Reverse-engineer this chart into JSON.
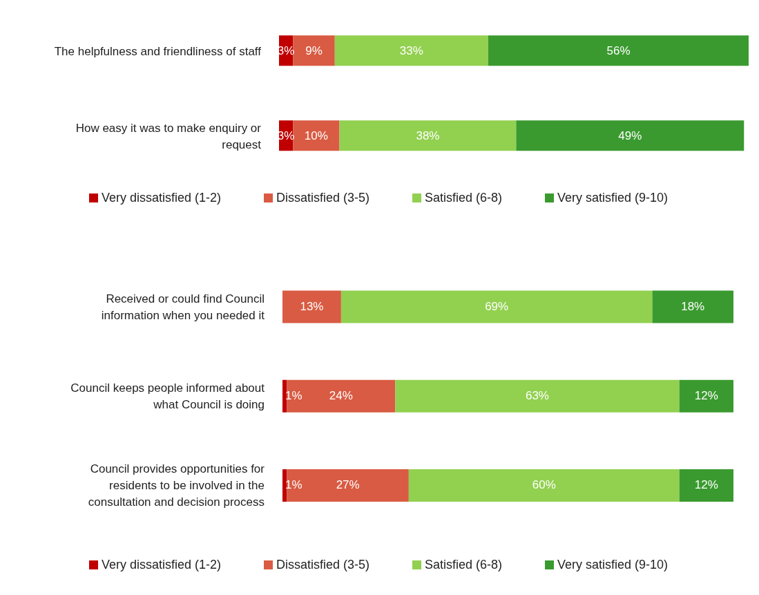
{
  "chart_data": [
    {
      "type": "bar",
      "orientation": "horizontal",
      "stacked": true,
      "legend": "bottom",
      "categories": [
        "The helpfulness and friendliness of staff",
        "How easy it was to make enquiry or request"
      ],
      "series": [
        {
          "name": "Very dissatisfied (1-2)",
          "color": "#c00000",
          "values": [
            3,
            3
          ],
          "value_labels": [
            "3%",
            "3%"
          ]
        },
        {
          "name": "Dissatisfied (3-5)",
          "color": "#d95b43",
          "values": [
            9,
            10
          ],
          "value_labels": [
            "9%",
            "10%"
          ]
        },
        {
          "name": "Satisfied (6-8)",
          "color": "#92d050",
          "values": [
            33,
            38
          ],
          "value_labels": [
            "33%",
            "38%"
          ]
        },
        {
          "name": "Very satisfied (9-10)",
          "color": "#3a9a2f",
          "values": [
            56,
            49
          ],
          "value_labels": [
            "56%",
            "49%"
          ]
        }
      ]
    },
    {
      "type": "bar",
      "orientation": "horizontal",
      "stacked": true,
      "legend": "bottom",
      "categories": [
        "Received or could find Council information when you needed it",
        "Council keeps people informed about what Council is doing",
        "Council provides opportunities for residents to be involved in the consultation and decision process"
      ],
      "series": [
        {
          "name": "Very dissatisfied (1-2)",
          "color": "#c00000",
          "values": [
            null,
            1,
            1
          ],
          "value_labels": [
            null,
            "1%",
            "1%"
          ]
        },
        {
          "name": "Dissatisfied (3-5)",
          "color": "#d95b43",
          "values": [
            13,
            24,
            27
          ],
          "value_labels": [
            "13%",
            "24%",
            "27%"
          ]
        },
        {
          "name": "Satisfied (6-8)",
          "color": "#92d050",
          "values": [
            69,
            63,
            60
          ],
          "value_labels": [
            "69%",
            "63%",
            "60%"
          ]
        },
        {
          "name": "Very satisfied (9-10)",
          "color": "#3a9a2f",
          "values": [
            18,
            12,
            12
          ],
          "value_labels": [
            "18%",
            "12%",
            "12%"
          ]
        }
      ]
    }
  ]
}
